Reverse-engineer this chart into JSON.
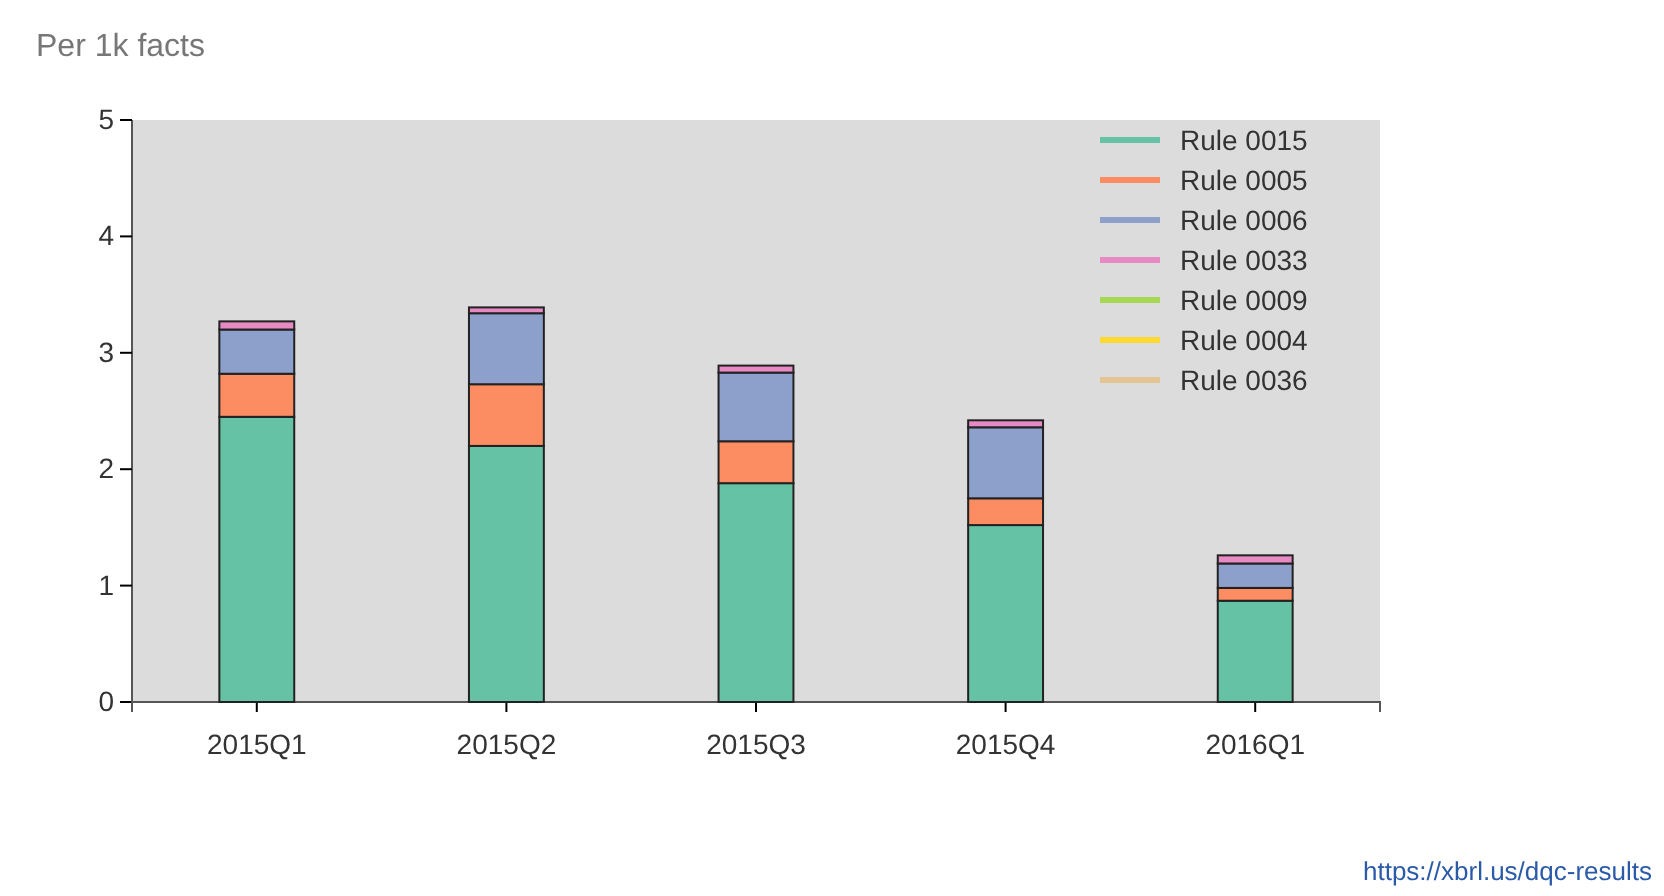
{
  "chart_data": {
    "type": "bar",
    "stacked": true,
    "ylabel": "Per 1k facts",
    "categories": [
      "2015Q1",
      "2015Q2",
      "2015Q3",
      "2015Q4",
      "2016Q1"
    ],
    "series": [
      {
        "name": "Rule 0015",
        "color": "#66c2a5",
        "values": [
          2.45,
          2.2,
          1.88,
          1.52,
          0.87
        ]
      },
      {
        "name": "Rule 0005",
        "color": "#fc8d62",
        "values": [
          0.37,
          0.53,
          0.36,
          0.23,
          0.11
        ]
      },
      {
        "name": "Rule 0006",
        "color": "#8da0cb",
        "values": [
          0.38,
          0.61,
          0.59,
          0.61,
          0.21
        ]
      },
      {
        "name": "Rule 0033",
        "color": "#e78ac3",
        "values": [
          0.07,
          0.05,
          0.06,
          0.06,
          0.07
        ]
      },
      {
        "name": "Rule 0009",
        "color": "#a6d854",
        "values": [
          null,
          null,
          null,
          null,
          null
        ]
      },
      {
        "name": "Rule 0004",
        "color": "#ffd92f",
        "values": [
          null,
          null,
          null,
          null,
          null
        ]
      },
      {
        "name": "Rule 0036",
        "color": "#e5c494",
        "values": [
          null,
          null,
          null,
          null,
          null
        ]
      }
    ],
    "ylim": [
      0,
      5
    ],
    "yticks": [
      0,
      1,
      2,
      3,
      4,
      5
    ],
    "grid": false,
    "legend": "top right",
    "annotations": [
      "https://xbrl.us/dqc-results"
    ]
  }
}
